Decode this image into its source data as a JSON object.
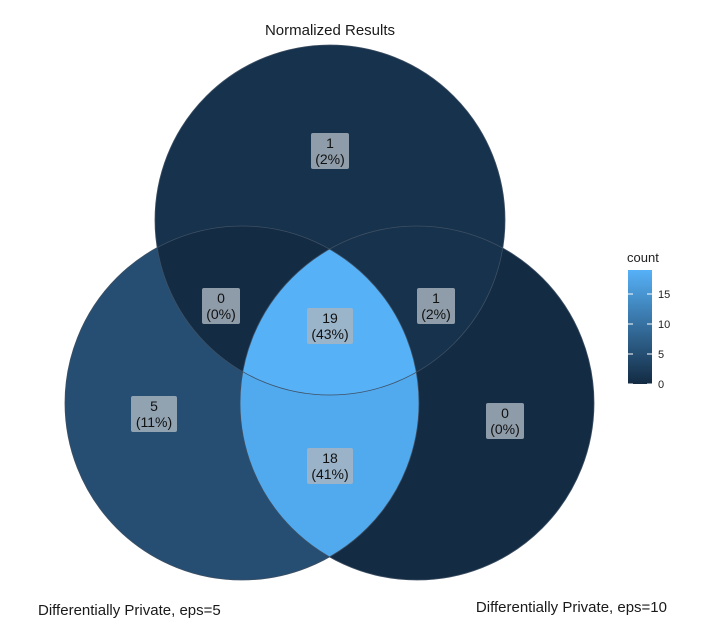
{
  "chart_data": {
    "type": "venn",
    "title": "Normalized Results",
    "sets": [
      {
        "name": "",
        "position": "top"
      },
      {
        "name": "Differentially Private, eps=5",
        "position": "bottom-left"
      },
      {
        "name": "Differentially Private, eps=10",
        "position": "bottom-right"
      }
    ],
    "regions": [
      {
        "id": "top_only",
        "count": 1,
        "label": "1",
        "percent": "(2%)"
      },
      {
        "id": "top_left",
        "count": 0,
        "label": "0",
        "percent": "(0%)"
      },
      {
        "id": "top_right",
        "count": 1,
        "label": "1",
        "percent": "(2%)"
      },
      {
        "id": "all_three",
        "count": 19,
        "label": "19",
        "percent": "(43%)"
      },
      {
        "id": "left_only",
        "count": 5,
        "label": "5",
        "percent": "(11%)"
      },
      {
        "id": "left_right",
        "count": 18,
        "label": "18",
        "percent": "(41%)"
      },
      {
        "id": "right_only",
        "count": 0,
        "label": "0",
        "percent": "(0%)"
      }
    ],
    "legend": {
      "title": "count",
      "ticks": [
        0,
        5,
        10,
        15
      ],
      "range": [
        0,
        19
      ],
      "position": "right",
      "color_low": "#132B43",
      "color_high": "#56B1F7"
    }
  }
}
